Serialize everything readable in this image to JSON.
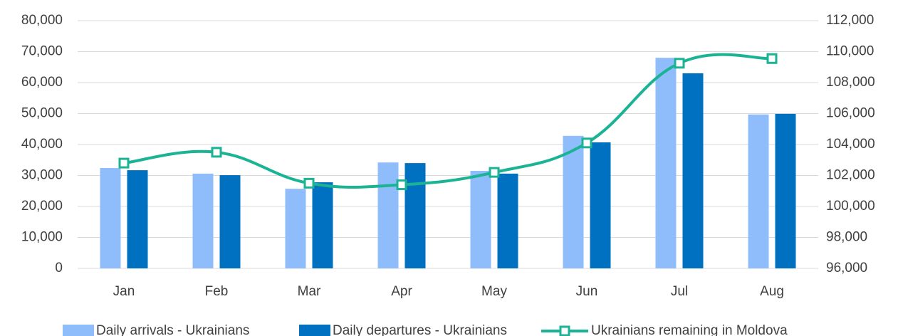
{
  "chart_data": {
    "type": "bar",
    "categories": [
      "Jan",
      "Feb",
      "Mar",
      "Apr",
      "May",
      "Jun",
      "Jul",
      "Aug"
    ],
    "series": [
      {
        "name": "Daily arrivals - Ukrainians",
        "color": "#8fbcfb",
        "values": [
          32400,
          30600,
          25700,
          34200,
          31500,
          42800,
          68000,
          49700
        ]
      },
      {
        "name": "Daily departures - Ukrainians",
        "color": "#0070c0",
        "values": [
          31700,
          30100,
          27800,
          34000,
          30600,
          40700,
          63000,
          49900
        ]
      },
      {
        "name": "Ukrainians remaining in Moldova",
        "color": "#1ab394",
        "type": "line",
        "axis": "y2",
        "values": [
          102800,
          103500,
          101500,
          101400,
          102200,
          104100,
          109250,
          109550
        ]
      }
    ],
    "ylim": [
      0,
      80000
    ],
    "yticks": [
      0,
      {
        "value": 10000,
        "label": "10,000"
      },
      {
        "value": 20000,
        "label": "20,000"
      },
      {
        "value": 30000,
        "label": "30,000"
      },
      {
        "value": 40000,
        "label": "40,000"
      },
      {
        "value": 50000,
        "label": "50,000"
      },
      {
        "value": 60000,
        "label": "60,000"
      },
      {
        "value": 70000,
        "label": "70,000"
      },
      {
        "value": 80000,
        "label": "80,000"
      }
    ],
    "y2lim": [
      96000,
      112000
    ],
    "y2ticks": [
      {
        "value": 96000,
        "label": "96,000"
      },
      {
        "value": 98000,
        "label": "98,000"
      },
      {
        "value": 100000,
        "label": "100,000"
      },
      {
        "value": 102000,
        "label": "102,000"
      },
      {
        "value": 104000,
        "label": "104,000"
      },
      {
        "value": 106000,
        "label": "106,000"
      },
      {
        "value": 108000,
        "label": "108,000"
      },
      {
        "value": 110000,
        "label": "110,000"
      },
      {
        "value": 112000,
        "label": "112,000"
      }
    ],
    "grid": true,
    "legend": "bottom"
  }
}
